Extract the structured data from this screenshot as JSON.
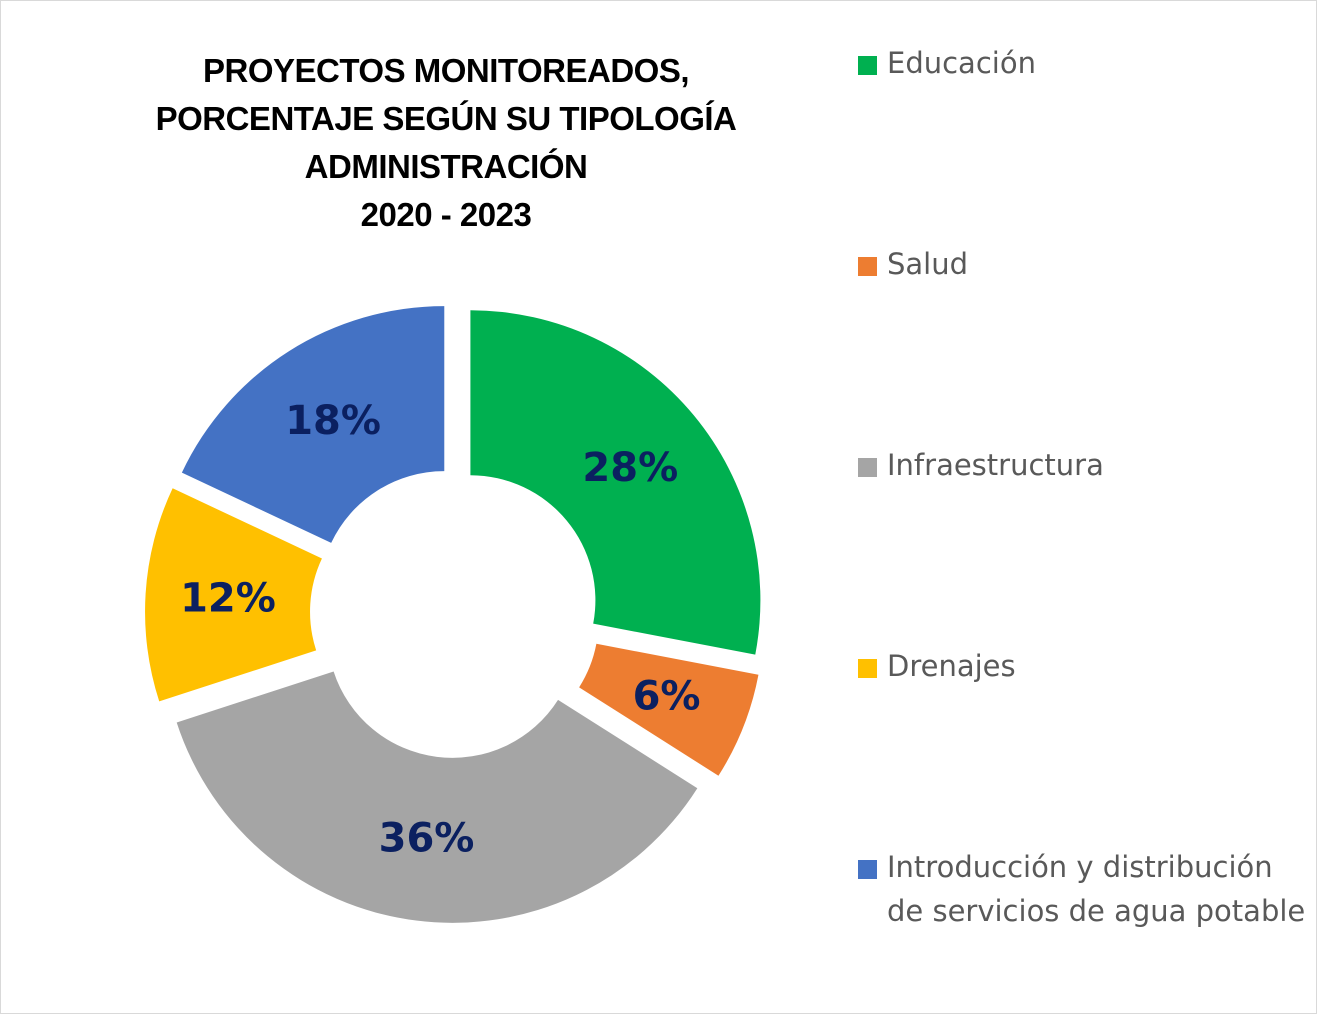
{
  "chart_data": {
    "type": "pie",
    "title": [
      "PROYECTOS MONITOREADOS,",
      "PORCENTAJE SEGÚN SU TIPOLOGÍA",
      "ADMINISTRACIÓN",
      "2020 - 2023"
    ],
    "categories": [
      "Educación",
      "Salud",
      "Infraestructura",
      "Drenajes",
      "Introducción y distribución de servicios de agua potable"
    ],
    "values": [
      28,
      6,
      36,
      12,
      18
    ],
    "data_labels": [
      "28%",
      "6%",
      "36%",
      "12%",
      "18%"
    ],
    "colors": [
      "#00b050",
      "#ed7d31",
      "#a5a5a5",
      "#ffc000",
      "#4472c4"
    ],
    "label_color": "#0b2060",
    "legend_position": "right",
    "style": "exploded-doughnut"
  }
}
